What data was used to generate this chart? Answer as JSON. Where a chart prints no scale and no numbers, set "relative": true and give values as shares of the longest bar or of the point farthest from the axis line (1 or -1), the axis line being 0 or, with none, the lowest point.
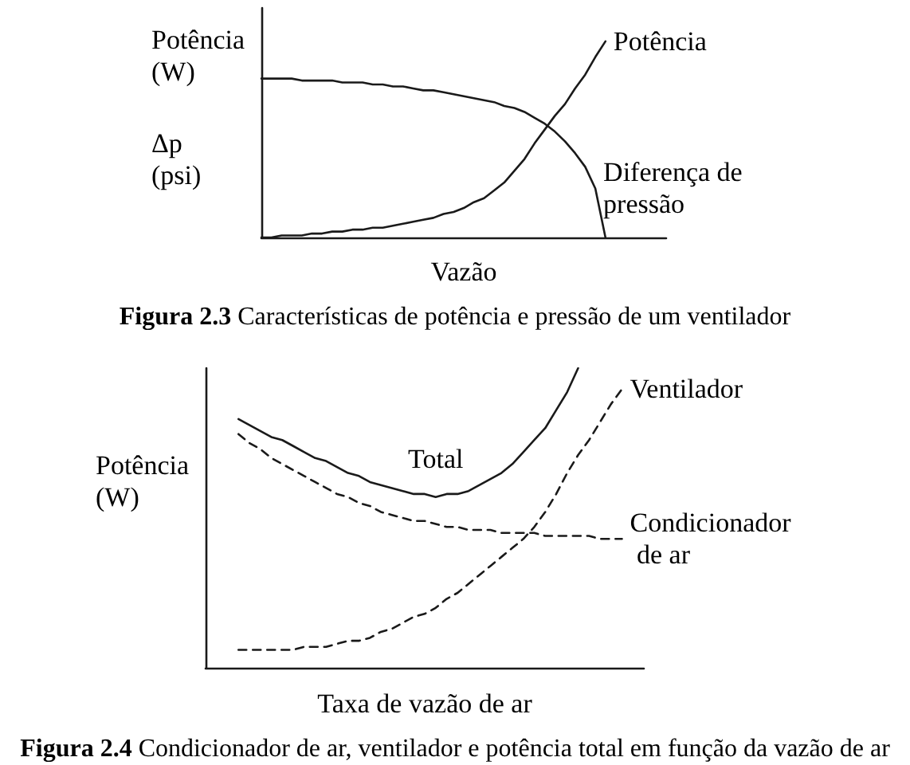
{
  "chart_data": [
    {
      "type": "line",
      "title": "Figura 2.3 Características de potência e pressão de um ventilador",
      "xlabel": "Vazão",
      "ylabel": "Potência (W)\nΔp (psi)",
      "relative": true,
      "legend": false,
      "grid": false,
      "line_style": "solid",
      "categories": [
        null,
        null,
        null,
        null,
        null,
        null,
        null,
        null,
        null,
        null,
        null,
        null,
        null,
        null,
        null,
        null,
        null,
        null,
        null,
        null,
        null,
        null,
        null,
        null,
        null,
        null,
        null,
        null,
        null,
        null,
        null,
        null,
        null,
        null,
        null,
        null,
        null,
        null,
        null,
        null,
        null
      ],
      "series": [
        {
          "name": "Potência",
          "color": "#1a1a1a",
          "values": [
            0,
            0,
            0.01,
            0.01,
            0.01,
            0.02,
            0.02,
            0.03,
            0.03,
            0.04,
            0.04,
            0.05,
            0.05,
            0.06,
            0.07,
            0.08,
            0.09,
            0.1,
            0.12,
            0.13,
            0.15,
            0.18,
            0.2,
            0.24,
            0.28,
            0.34,
            0.4,
            0.48,
            0.55,
            0.62,
            0.68,
            0.76,
            0.83,
            0.92,
            1,
            null,
            null,
            null,
            null,
            null,
            null
          ]
        },
        {
          "name": "Diferença de pressão",
          "color": "#1a1a1a",
          "values": [
            0.81,
            0.81,
            0.81,
            0.81,
            0.8,
            0.8,
            0.8,
            0.8,
            0.79,
            0.79,
            0.79,
            0.78,
            0.78,
            0.77,
            0.77,
            0.76,
            0.75,
            0.75,
            0.74,
            0.73,
            0.72,
            0.71,
            0.7,
            0.69,
            0.67,
            0.66,
            0.64,
            0.61,
            0.58,
            0.54,
            0.49,
            0.43,
            0.36,
            0.25,
            0,
            null,
            null,
            null,
            null,
            null,
            null
          ]
        }
      ]
    },
    {
      "type": "line",
      "title": "Figura 2.4 Condicionador de ar, ventilador e potência total em função da vazão de ar",
      "xlabel": "Taxa de vazão de ar",
      "ylabel": "Potência (W)",
      "relative": true,
      "legend": false,
      "grid": false,
      "categories": [
        null,
        null,
        null,
        null,
        null,
        null,
        null,
        null,
        null,
        null,
        null,
        null,
        null,
        null,
        null,
        null,
        null,
        null,
        null,
        null,
        null,
        null,
        null,
        null,
        null,
        null,
        null,
        null,
        null,
        null,
        null,
        null,
        null,
        null,
        null,
        null,
        null,
        null,
        null,
        null,
        null
      ],
      "series": [
        {
          "name": "Total",
          "color": "#1a1a1a",
          "line_style": "solid",
          "values": [
            null,
            null,
            null,
            0.83,
            0.81,
            0.79,
            0.77,
            0.76,
            0.74,
            0.72,
            0.7,
            0.69,
            0.67,
            0.65,
            0.64,
            0.62,
            0.61,
            0.6,
            0.59,
            0.58,
            0.58,
            0.57,
            0.58,
            0.58,
            0.59,
            0.61,
            0.63,
            0.65,
            0.68,
            0.72,
            0.76,
            0.8,
            0.86,
            0.92,
            1,
            null,
            null,
            null,
            null,
            null,
            null
          ]
        },
        {
          "name": "Ventilador",
          "color": "#1a1a1a",
          "line_style": "dashed",
          "values": [
            null,
            null,
            null,
            0.06,
            0.06,
            0.06,
            0.06,
            0.06,
            0.06,
            0.07,
            0.07,
            0.07,
            0.08,
            0.09,
            0.09,
            0.1,
            0.12,
            0.13,
            0.15,
            0.17,
            0.18,
            0.2,
            0.23,
            0.25,
            0.28,
            0.31,
            0.34,
            0.37,
            0.4,
            0.43,
            0.47,
            0.52,
            0.58,
            0.65,
            0.71,
            0.76,
            0.82,
            0.88,
            0.93,
            null,
            null
          ]
        },
        {
          "name": "Condicionador de ar",
          "color": "#1a1a1a",
          "line_style": "dashed",
          "values": [
            null,
            null,
            null,
            0.78,
            0.75,
            0.73,
            0.7,
            0.68,
            0.66,
            0.64,
            0.62,
            0.6,
            0.58,
            0.57,
            0.55,
            0.54,
            0.52,
            0.51,
            0.5,
            0.49,
            0.49,
            0.48,
            0.47,
            0.47,
            0.46,
            0.46,
            0.46,
            0.45,
            0.45,
            0.45,
            0.45,
            0.44,
            0.44,
            0.44,
            0.44,
            0.44,
            0.43,
            0.43,
            0.43,
            null,
            null
          ]
        }
      ]
    }
  ]
}
